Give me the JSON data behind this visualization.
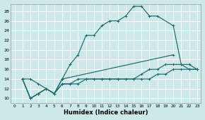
{
  "xlabel": "Humidex (Indice chaleur)",
  "bg_color": "#cce8e8",
  "grid_color": "#ffffff",
  "line_color": "#1a6b6b",
  "xlim": [
    -0.5,
    23.5
  ],
  "ylim": [
    9,
    29.5
  ],
  "xticks": [
    0,
    1,
    2,
    3,
    4,
    5,
    6,
    7,
    8,
    9,
    10,
    11,
    12,
    13,
    14,
    15,
    16,
    17,
    18,
    19,
    20,
    21,
    22,
    23
  ],
  "yticks": [
    10,
    12,
    14,
    16,
    18,
    20,
    22,
    24,
    26,
    28
  ],
  "line1_x": [
    1,
    2,
    3,
    4,
    5,
    6,
    7,
    8,
    9,
    10,
    11,
    12,
    13,
    14,
    15,
    16,
    17,
    18,
    20,
    21,
    22,
    23
  ],
  "line1_y": [
    14,
    14,
    13,
    12,
    11,
    14,
    17,
    19,
    23,
    23,
    25,
    26,
    26,
    27,
    29,
    29,
    27,
    27,
    25,
    17,
    16,
    16
  ],
  "line2_x": [
    1,
    2,
    3,
    4,
    5,
    6,
    7,
    8,
    9,
    10,
    11,
    12,
    13,
    14,
    15,
    16,
    17,
    18,
    19,
    20,
    21,
    22,
    23
  ],
  "line2_y": [
    14,
    10,
    11,
    12,
    11,
    13,
    13,
    14,
    14,
    14,
    14,
    14,
    14,
    14,
    14,
    15,
    16,
    16,
    17,
    17,
    17,
    17,
    16
  ],
  "line3_x": [
    1,
    2,
    3,
    4,
    5,
    6,
    7,
    8,
    9,
    10,
    11,
    12,
    13,
    14,
    15,
    16,
    17,
    18,
    19,
    20,
    21,
    22,
    23
  ],
  "line3_y": [
    14,
    10,
    11,
    12,
    11,
    13,
    13,
    13,
    14,
    14,
    14,
    14,
    14,
    14,
    14,
    14,
    14,
    15,
    15,
    16,
    16,
    16,
    16
  ],
  "line4_x": [
    1,
    2,
    3,
    4,
    5,
    6,
    20
  ],
  "line4_y": [
    14,
    10,
    11,
    12,
    11,
    14,
    19
  ]
}
